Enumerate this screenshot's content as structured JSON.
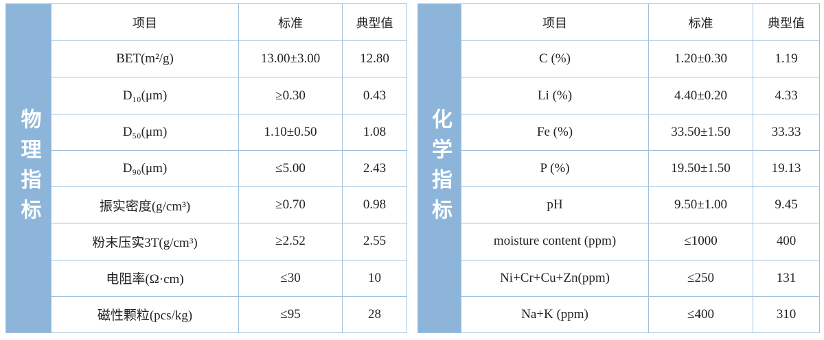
{
  "tables": [
    {
      "side_label": "物理指标",
      "header": [
        "项目",
        "标准",
        "典型值"
      ],
      "rows": [
        [
          "BET(m²/g)",
          "13.00±3.00",
          "12.80"
        ],
        [
          "D₁₀(μm)",
          "≥0.30",
          "0.43"
        ],
        [
          "D₅₀(μm)",
          "1.10±0.50",
          "1.08"
        ],
        [
          "D₉₀(μm)",
          "≤5.00",
          "2.43"
        ],
        [
          "振实密度(g/cm³)",
          "≥0.70",
          "0.98"
        ],
        [
          "粉末压实3T(g/cm³)",
          "≥2.52",
          "2.55"
        ],
        [
          "电阻率(Ω·cm)",
          "≤30",
          "10"
        ],
        [
          "磁性颗粒(pcs/kg)",
          "≤95",
          "28"
        ]
      ]
    },
    {
      "side_label": "化学指标",
      "header": [
        "项目",
        "标准",
        "典型值"
      ],
      "rows": [
        [
          "C (%)",
          "1.20±0.30",
          "1.19"
        ],
        [
          "Li (%)",
          "4.40±0.20",
          "4.33"
        ],
        [
          "Fe (%)",
          "33.50±1.50",
          "33.33"
        ],
        [
          "P (%)",
          "19.50±1.50",
          "19.13"
        ],
        [
          "pH",
          "9.50±1.00",
          "9.45"
        ],
        [
          "moisture content (ppm)",
          "≤1000",
          "400"
        ],
        [
          "Ni+Cr+Cu+Zn(ppm)",
          "≤250",
          "131"
        ],
        [
          "Na+K (ppm)",
          "≤400",
          "310"
        ]
      ]
    }
  ]
}
